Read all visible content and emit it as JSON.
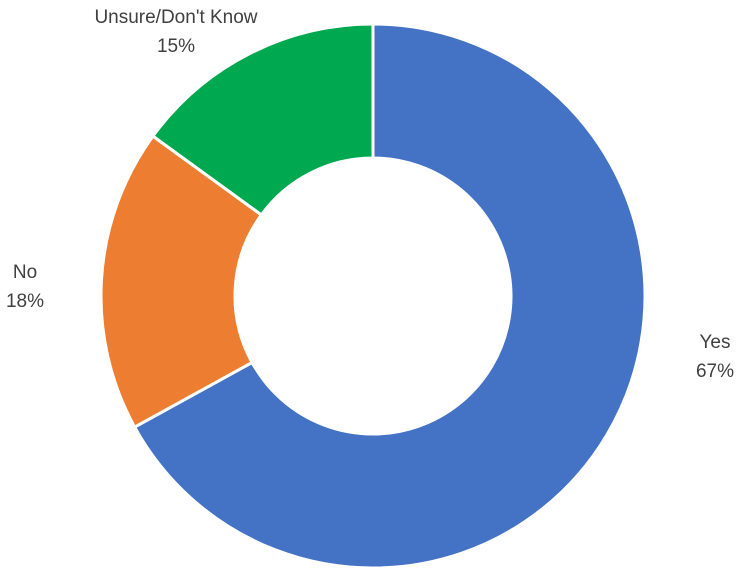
{
  "chart_data": {
    "type": "donut",
    "categories": [
      "Yes",
      "No",
      "Unsure/Don't Know"
    ],
    "values": [
      67,
      18,
      15
    ],
    "value_labels": [
      "67%",
      "18%",
      "15%"
    ],
    "colors": [
      "#4472c4",
      "#ed7d31",
      "#00a84f"
    ]
  }
}
